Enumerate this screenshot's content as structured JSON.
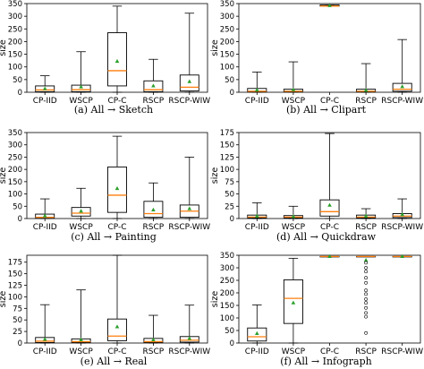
{
  "chart_data": [
    {
      "type": "box",
      "caption": "(a) All → Sketch",
      "ylabel": "size",
      "ylim": [
        0,
        350
      ],
      "yticks": [
        0,
        50,
        100,
        150,
        200,
        250,
        300,
        350
      ],
      "categories": [
        "CP-IID",
        "WSCP",
        "CP-C",
        "RSCP",
        "RSCP-WIW"
      ],
      "boxes": [
        {
          "min": 0,
          "q1": 2,
          "median": 9,
          "q3": 25,
          "max": 65,
          "mean": 14,
          "outliers": []
        },
        {
          "min": 0,
          "q1": 2,
          "median": 10,
          "q3": 28,
          "max": 160,
          "mean": 21,
          "outliers": []
        },
        {
          "min": 0,
          "q1": 25,
          "median": 85,
          "q3": 235,
          "max": 340,
          "mean": 122,
          "outliers": []
        },
        {
          "min": 0,
          "q1": 2,
          "median": 10,
          "q3": 45,
          "max": 130,
          "mean": 25,
          "outliers": []
        },
        {
          "min": 0,
          "q1": 5,
          "median": 20,
          "q3": 68,
          "max": 312,
          "mean": 42,
          "outliers": []
        }
      ]
    },
    {
      "type": "box",
      "caption": "(b) All → Clipart",
      "ylabel": "size",
      "ylim": [
        0,
        350
      ],
      "yticks": [
        0,
        50,
        100,
        150,
        200,
        250,
        300,
        350
      ],
      "categories": [
        "CP-IID",
        "WSCP",
        "CP-C",
        "RSCP",
        "RSCP-WIW"
      ],
      "boxes": [
        {
          "min": 0,
          "q1": 1,
          "median": 4,
          "q3": 15,
          "max": 80,
          "mean": 9,
          "outliers": []
        },
        {
          "min": 0,
          "q1": 1,
          "median": 4,
          "q3": 12,
          "max": 120,
          "mean": 10,
          "outliers": []
        },
        {
          "min": 340,
          "q1": 340,
          "median": 340,
          "q3": 345,
          "max": 345,
          "mean": 342,
          "outliers": []
        },
        {
          "min": 0,
          "q1": 1,
          "median": 4,
          "q3": 12,
          "max": 113,
          "mean": 8,
          "outliers": []
        },
        {
          "min": 0,
          "q1": 4,
          "median": 12,
          "q3": 35,
          "max": 208,
          "mean": 22,
          "outliers": []
        }
      ]
    },
    {
      "type": "box",
      "caption": "(c) All → Painting",
      "ylabel": "size",
      "ylim": [
        0,
        350
      ],
      "yticks": [
        0,
        50,
        100,
        150,
        200,
        250,
        300,
        350
      ],
      "categories": [
        "CP-IID",
        "WSCP",
        "CP-C",
        "RSCP",
        "RSCP-WIW"
      ],
      "boxes": [
        {
          "min": 0,
          "q1": 1,
          "median": 5,
          "q3": 18,
          "max": 80,
          "mean": 11,
          "outliers": []
        },
        {
          "min": 0,
          "q1": 10,
          "median": 22,
          "q3": 45,
          "max": 123,
          "mean": 30,
          "outliers": []
        },
        {
          "min": 0,
          "q1": 25,
          "median": 95,
          "q3": 210,
          "max": 335,
          "mean": 122,
          "outliers": []
        },
        {
          "min": 0,
          "q1": 5,
          "median": 20,
          "q3": 70,
          "max": 145,
          "mean": 35,
          "outliers": []
        },
        {
          "min": 0,
          "q1": 5,
          "median": 30,
          "q3": 55,
          "max": 250,
          "mean": 40,
          "outliers": []
        }
      ]
    },
    {
      "type": "box",
      "caption": "(d) All → Quickdraw",
      "ylabel": "size",
      "ylim": [
        0,
        175
      ],
      "yticks": [
        0,
        25,
        50,
        75,
        100,
        125,
        150,
        175
      ],
      "categories": [
        "CP-IID",
        "WSCP",
        "CP-C",
        "RSCP",
        "RSCP-WIW"
      ],
      "boxes": [
        {
          "min": 0,
          "q1": 1,
          "median": 3,
          "q3": 7,
          "max": 32,
          "mean": 5,
          "outliers": []
        },
        {
          "min": 0,
          "q1": 1,
          "median": 3,
          "q3": 6,
          "max": 25,
          "mean": 4,
          "outliers": []
        },
        {
          "min": 0,
          "q1": 5,
          "median": 14,
          "q3": 38,
          "max": 173,
          "mean": 27,
          "outliers": []
        },
        {
          "min": 0,
          "q1": 1,
          "median": 3,
          "q3": 7,
          "max": 20,
          "mean": 5,
          "outliers": []
        },
        {
          "min": 0,
          "q1": 2,
          "median": 5,
          "q3": 10,
          "max": 40,
          "mean": 8,
          "outliers": []
        }
      ]
    },
    {
      "type": "box",
      "caption": "(e) All → Real",
      "ylabel": "size",
      "ylim": [
        0,
        190
      ],
      "yticks": [
        0,
        25,
        50,
        75,
        100,
        125,
        150,
        175
      ],
      "categories": [
        "CP-IID",
        "WSCP",
        "CP-C",
        "RSCP",
        "RSCP-WIW"
      ],
      "boxes": [
        {
          "min": 0,
          "q1": 1,
          "median": 4,
          "q3": 12,
          "max": 83,
          "mean": 8,
          "outliers": []
        },
        {
          "min": 0,
          "q1": 1,
          "median": 3,
          "q3": 9,
          "max": 115,
          "mean": 7,
          "outliers": []
        },
        {
          "min": 0,
          "q1": 5,
          "median": 15,
          "q3": 52,
          "max": 190,
          "mean": 35,
          "outliers": []
        },
        {
          "min": 0,
          "q1": 1,
          "median": 3,
          "q3": 10,
          "max": 60,
          "mean": 7,
          "outliers": []
        },
        {
          "min": 0,
          "q1": 2,
          "median": 6,
          "q3": 14,
          "max": 82,
          "mean": 10,
          "outliers": []
        }
      ]
    },
    {
      "type": "box",
      "caption": "(f) All → Infograph",
      "ylabel": "size",
      "ylim": [
        0,
        350
      ],
      "yticks": [
        0,
        50,
        100,
        150,
        200,
        250,
        300,
        350
      ],
      "categories": [
        "CP-IID",
        "WSCP",
        "CP-C",
        "RSCP",
        "RSCP-WIW"
      ],
      "boxes": [
        {
          "min": 0,
          "q1": 8,
          "median": 25,
          "q3": 60,
          "max": 152,
          "mean": 38,
          "outliers": []
        },
        {
          "min": 0,
          "q1": 78,
          "median": 178,
          "q3": 252,
          "max": 338,
          "mean": 160,
          "outliers": []
        },
        {
          "min": 345,
          "q1": 345,
          "median": 345,
          "q3": 345,
          "max": 345,
          "mean": 345,
          "outliers": []
        },
        {
          "min": 345,
          "q1": 345,
          "median": 345,
          "q3": 345,
          "max": 345,
          "mean": 330,
          "outliers": [
            320,
            300,
            285,
            260,
            240,
            210,
            195,
            175,
            160,
            140,
            120,
            105,
            40
          ]
        },
        {
          "min": 345,
          "q1": 345,
          "median": 345,
          "q3": 345,
          "max": 345,
          "mean": 345,
          "outliers": []
        }
      ]
    }
  ],
  "colors": {
    "box": "#000000",
    "median": "#ff7f0e",
    "mean": "#2ca02c",
    "outlier": "#000000"
  }
}
